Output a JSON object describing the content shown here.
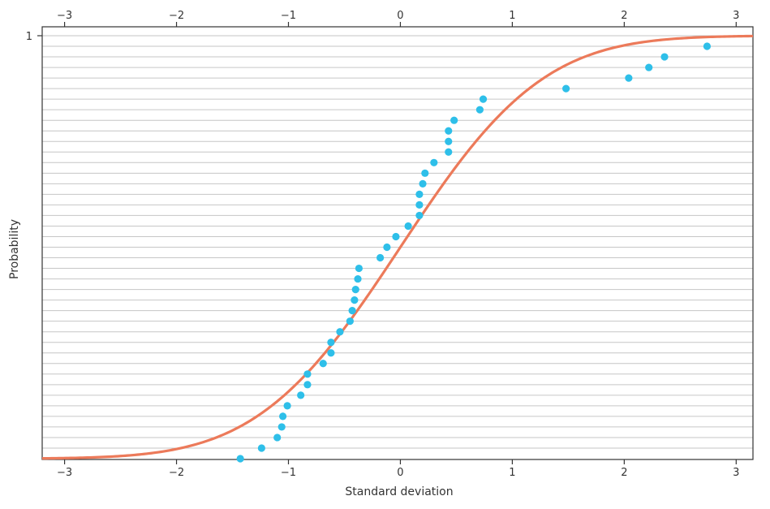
{
  "chart_data": {
    "type": "scatter",
    "xlabel": "Standard deviation",
    "ylabel": "Probability",
    "xlim": [
      -3.2,
      3.15
    ],
    "ylim": [
      0,
      1
    ],
    "x_ticks": [
      -3,
      -2,
      -1,
      0,
      1,
      2,
      3
    ],
    "x_tick_labels": [
      "−3",
      "−2",
      "−1",
      "0",
      "1",
      "2",
      "3"
    ],
    "y_tick_labels": [
      "1"
    ],
    "grid": true,
    "curve": {
      "type": "line",
      "description_values": "standard normal CDF"
    },
    "colors": {
      "curve": "#ec7a5a",
      "points": "#2ebfe9",
      "grid": "#c6c6c6",
      "axes": "#333333"
    },
    "points": [
      {
        "x": -1.43,
        "y": 0.0
      },
      {
        "x": -1.24,
        "y": 0.025
      },
      {
        "x": -1.1,
        "y": 0.05
      },
      {
        "x": -1.06,
        "y": 0.075
      },
      {
        "x": -1.05,
        "y": 0.1
      },
      {
        "x": -1.01,
        "y": 0.125
      },
      {
        "x": -0.89,
        "y": 0.15
      },
      {
        "x": -0.83,
        "y": 0.175
      },
      {
        "x": -0.83,
        "y": 0.2
      },
      {
        "x": -0.69,
        "y": 0.225
      },
      {
        "x": -0.62,
        "y": 0.25
      },
      {
        "x": -0.62,
        "y": 0.275
      },
      {
        "x": -0.54,
        "y": 0.3
      },
      {
        "x": -0.45,
        "y": 0.325
      },
      {
        "x": -0.43,
        "y": 0.35
      },
      {
        "x": -0.41,
        "y": 0.375
      },
      {
        "x": -0.4,
        "y": 0.4
      },
      {
        "x": -0.38,
        "y": 0.425
      },
      {
        "x": -0.37,
        "y": 0.45
      },
      {
        "x": -0.18,
        "y": 0.475
      },
      {
        "x": -0.12,
        "y": 0.5
      },
      {
        "x": -0.04,
        "y": 0.525
      },
      {
        "x": 0.07,
        "y": 0.55
      },
      {
        "x": 0.17,
        "y": 0.575
      },
      {
        "x": 0.17,
        "y": 0.6
      },
      {
        "x": 0.17,
        "y": 0.625
      },
      {
        "x": 0.2,
        "y": 0.65
      },
      {
        "x": 0.22,
        "y": 0.675
      },
      {
        "x": 0.3,
        "y": 0.7
      },
      {
        "x": 0.43,
        "y": 0.725
      },
      {
        "x": 0.43,
        "y": 0.75
      },
      {
        "x": 0.43,
        "y": 0.775
      },
      {
        "x": 0.48,
        "y": 0.8
      },
      {
        "x": 0.71,
        "y": 0.825
      },
      {
        "x": 0.74,
        "y": 0.85
      },
      {
        "x": 1.48,
        "y": 0.875
      },
      {
        "x": 2.04,
        "y": 0.9
      },
      {
        "x": 2.22,
        "y": 0.925
      },
      {
        "x": 2.36,
        "y": 0.95
      },
      {
        "x": 2.74,
        "y": 0.975
      }
    ]
  }
}
